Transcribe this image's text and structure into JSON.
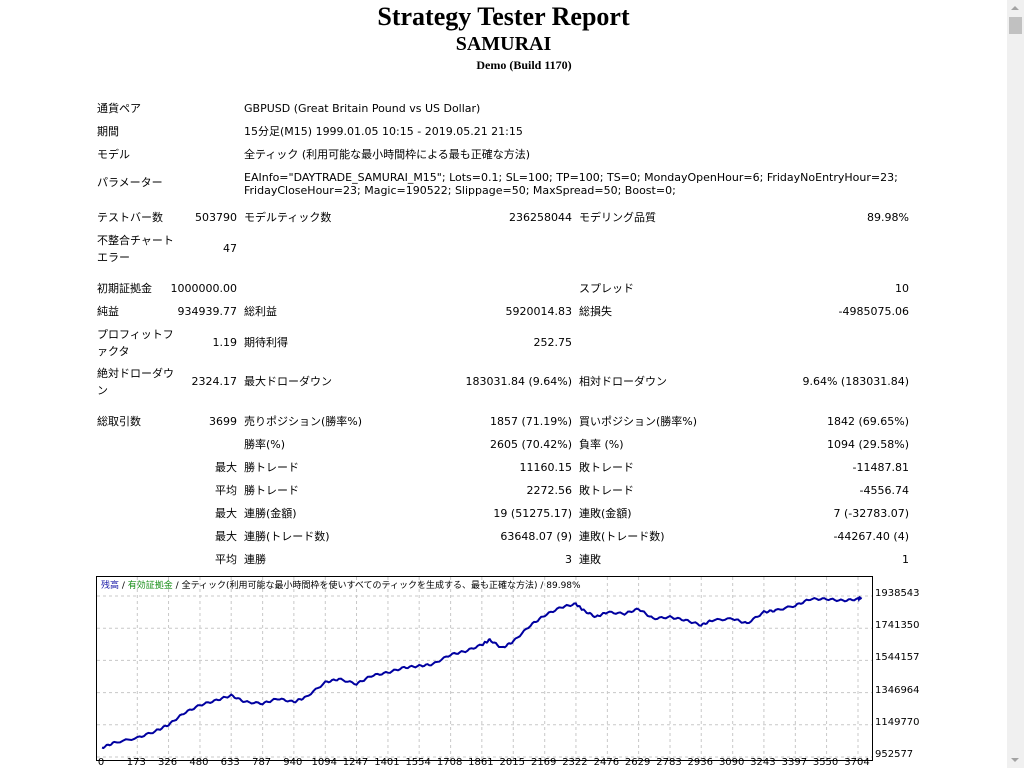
{
  "report": {
    "title": "Strategy Tester Report",
    "ea_name": "SAMURAI",
    "account": "Demo (Build 1170)"
  },
  "settings": {
    "symbol_label": "通貨ペア",
    "symbol_value": "GBPUSD (Great Britain Pound vs US Dollar)",
    "period_label": "期間",
    "period_value": "15分足(M15) 1999.01.05 10:15 - 2019.05.21 21:15",
    "model_label": "モデル",
    "model_value": "全ティック (利用可能な最小時間枠による最も正確な方法)",
    "params_label": "パラメーター",
    "params_line1": "EAInfo=\"DAYTRADE_SAMURAI_M15\"; Lots=0.1; SL=100; TP=100; TS=0; MondayOpenHour=6; FridayNoEntryHour=23;",
    "params_line2": "FridayCloseHour=23; Magic=190522; Slippage=50; MaxSpread=50; Boost=0;"
  },
  "stats": {
    "bars_label": "テストバー数",
    "bars_value": "503790",
    "ticks_label": "モデルティック数",
    "ticks_value": "236258044",
    "quality_label": "モデリング品質",
    "quality_value": "89.98%",
    "mismatch_label": "不整合チャートエラー",
    "mismatch_value": "47",
    "deposit_label": "初期証拠金",
    "deposit_value": "1000000.00",
    "spread_label": "スプレッド",
    "spread_value": "10",
    "net_label": "純益",
    "net_value": "934939.77",
    "gross_profit_label": "総利益",
    "gross_profit_value": "5920014.83",
    "gross_loss_label": "総損失",
    "gross_loss_value": "-4985075.06",
    "pf_label": "プロフィットファクタ",
    "pf_value": "1.19",
    "expected_label": "期待利得",
    "expected_value": "252.75",
    "abs_dd_label": "絶対ドローダウン",
    "abs_dd_value": "2324.17",
    "max_dd_label": "最大ドローダウン",
    "max_dd_value": "183031.84 (9.64%)",
    "rel_dd_label": "相対ドローダウン",
    "rel_dd_value": "9.64% (183031.84)",
    "trades_label": "総取引数",
    "trades_value": "3699",
    "short_label": "売りポジション(勝率%)",
    "short_value": "1857 (71.19%)",
    "long_label": "買いポジション(勝率%)",
    "long_value": "1842 (69.65%)",
    "win_rate_label": "勝率(%)",
    "win_rate_value": "2605 (70.42%)",
    "loss_rate_label": "負率 (%)",
    "loss_rate_value": "1094 (29.58%)",
    "max_prefix": "最大",
    "avg_prefix": "平均",
    "largest_win_label": "勝トレード",
    "largest_win_value": "11160.15",
    "largest_loss_label": "敗トレード",
    "largest_loss_value": "-11487.81",
    "avg_win_label": "勝トレード",
    "avg_win_value": "2272.56",
    "avg_loss_label": "敗トレード",
    "avg_loss_value": "-4556.74",
    "max_consec_wins_label": "連勝(金額)",
    "max_consec_wins_value": "19 (51275.17)",
    "max_consec_losses_label": "連敗(金額)",
    "max_consec_losses_value": "7 (-32783.07)",
    "max_consec_profit_label": "連勝(トレード数)",
    "max_consec_profit_value": "63648.07 (9)",
    "max_consec_loss_label": "連敗(トレード数)",
    "max_consec_loss_value": "-44267.40 (4)",
    "avg_consec_wins_label": "連勝",
    "avg_consec_wins_value": "3",
    "avg_consec_losses_label": "連敗",
    "avg_consec_losses_value": "1"
  },
  "chart_legend": {
    "balance": "残高",
    "sep1": " / ",
    "equity": "有効証拠金",
    "sep2": " / ",
    "rest": "全ティック(利用可能な最小時間枠を使いすべてのティックを生成する、最も正確な方法) / 89.98%"
  },
  "colors": {
    "balance_line": "#0000a0",
    "equity_legend": "#199019",
    "grid": "#c8c8c8"
  },
  "chart_data": {
    "type": "line",
    "title": "残高 / 有効証拠金 / 全ティック(利用可能な最小時間枠を使いすべてのティックを生成する、最も正確な方法) / 89.98%",
    "xlabel": "",
    "ylabel": "",
    "x_ticks": [
      "0",
      "173",
      "326",
      "480",
      "633",
      "787",
      "940",
      "1094",
      "1247",
      "1401",
      "1554",
      "1708",
      "1861",
      "2015",
      "2169",
      "2322",
      "2476",
      "2629",
      "2783",
      "2936",
      "3090",
      "3243",
      "3397",
      "3550",
      "3704"
    ],
    "y_ticks": [
      "1938543",
      "1741350",
      "1544157",
      "1346964",
      "1149770",
      "952577"
    ],
    "xlim": [
      0,
      3750
    ],
    "ylim": [
      952577,
      1938543
    ],
    "grid": true,
    "legend_position": "top-left",
    "series": [
      {
        "name": "残高",
        "x": [
          0,
          60,
          173,
          260,
          326,
          400,
          480,
          560,
          633,
          700,
          787,
          860,
          940,
          1000,
          1094,
          1160,
          1247,
          1320,
          1401,
          1480,
          1554,
          1620,
          1708,
          1780,
          1861,
          1900,
          1960,
          2015,
          2100,
          2169,
          2250,
          2322,
          2360,
          2420,
          2476,
          2560,
          2629,
          2700,
          2783,
          2860,
          2936,
          2990,
          3090,
          3160,
          3243,
          3300,
          3397,
          3470,
          3550,
          3630,
          3704,
          3720
        ],
        "values": [
          1010000,
          1040000,
          1070000,
          1110000,
          1150000,
          1220000,
          1270000,
          1300000,
          1330000,
          1290000,
          1280000,
          1310000,
          1290000,
          1320000,
          1410000,
          1430000,
          1400000,
          1450000,
          1470000,
          1500000,
          1510000,
          1520000,
          1580000,
          1600000,
          1640000,
          1670000,
          1620000,
          1660000,
          1760000,
          1820000,
          1870000,
          1890000,
          1850000,
          1810000,
          1840000,
          1830000,
          1860000,
          1800000,
          1810000,
          1790000,
          1760000,
          1790000,
          1800000,
          1770000,
          1840000,
          1850000,
          1880000,
          1920000,
          1920000,
          1910000,
          1920000,
          1930000
        ]
      }
    ]
  }
}
